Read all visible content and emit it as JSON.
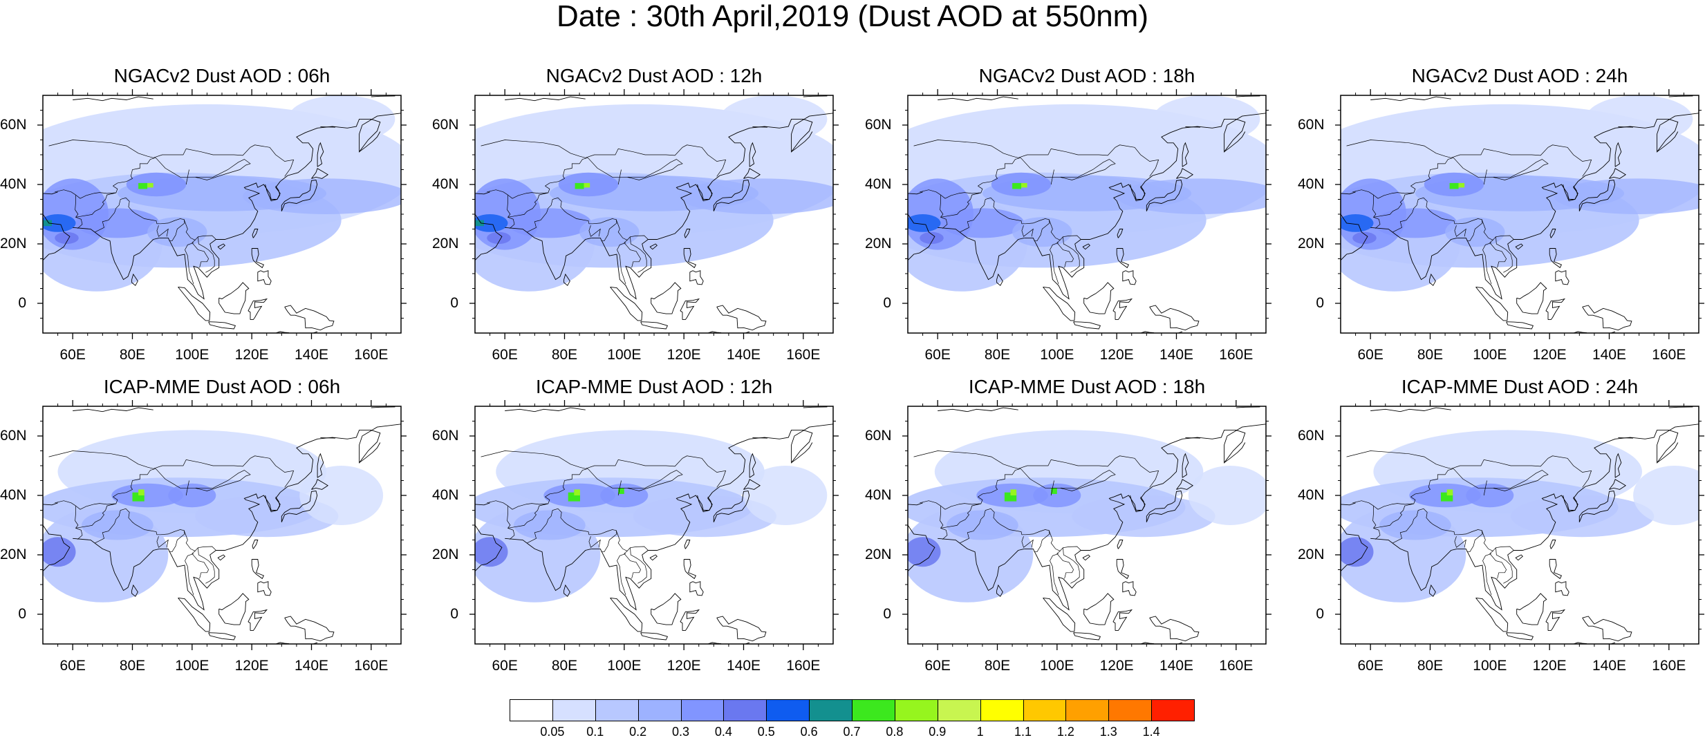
{
  "main_title": "Date : 30th April,2019 (Dust AOD at 550nm)",
  "panels": [
    {
      "title": "NGACv2 Dust AOD : 06h",
      "model": "NGACv2",
      "forecast_hour": "06h"
    },
    {
      "title": "NGACv2 Dust AOD : 12h",
      "model": "NGACv2",
      "forecast_hour": "12h"
    },
    {
      "title": "NGACv2 Dust AOD : 18h",
      "model": "NGACv2",
      "forecast_hour": "18h"
    },
    {
      "title": "NGACv2 Dust AOD : 24h",
      "model": "NGACv2",
      "forecast_hour": "24h"
    },
    {
      "title": "ICAP-MME Dust AOD : 06h",
      "model": "ICAP-MME",
      "forecast_hour": "06h"
    },
    {
      "title": "ICAP-MME Dust AOD : 12h",
      "model": "ICAP-MME",
      "forecast_hour": "12h"
    },
    {
      "title": "ICAP-MME Dust AOD : 18h",
      "model": "ICAP-MME",
      "forecast_hour": "18h"
    },
    {
      "title": "ICAP-MME Dust AOD : 24h",
      "model": "ICAP-MME",
      "forecast_hour": "24h"
    }
  ],
  "lat_ticks": [
    "60N",
    "40N",
    "20N",
    "0"
  ],
  "lon_ticks": [
    "60E",
    "80E",
    "100E",
    "120E",
    "140E",
    "160E"
  ],
  "colorbar": {
    "labels": [
      "0.05",
      "0.1",
      "0.2",
      "0.3",
      "0.4",
      "0.5",
      "0.6",
      "0.7",
      "0.8",
      "0.9",
      "1",
      "1.1",
      "1.2",
      "1.3",
      "1.4"
    ],
    "colors": [
      "#ffffff",
      "#d6e0ff",
      "#b8c8ff",
      "#9db2ff",
      "#8195ff",
      "#6a78f0",
      "#0f5cf0",
      "#13908f",
      "#3ce81e",
      "#96f51e",
      "#c8f550",
      "#ffff00",
      "#ffc800",
      "#ffa000",
      "#ff7800",
      "#ff2000"
    ]
  }
}
